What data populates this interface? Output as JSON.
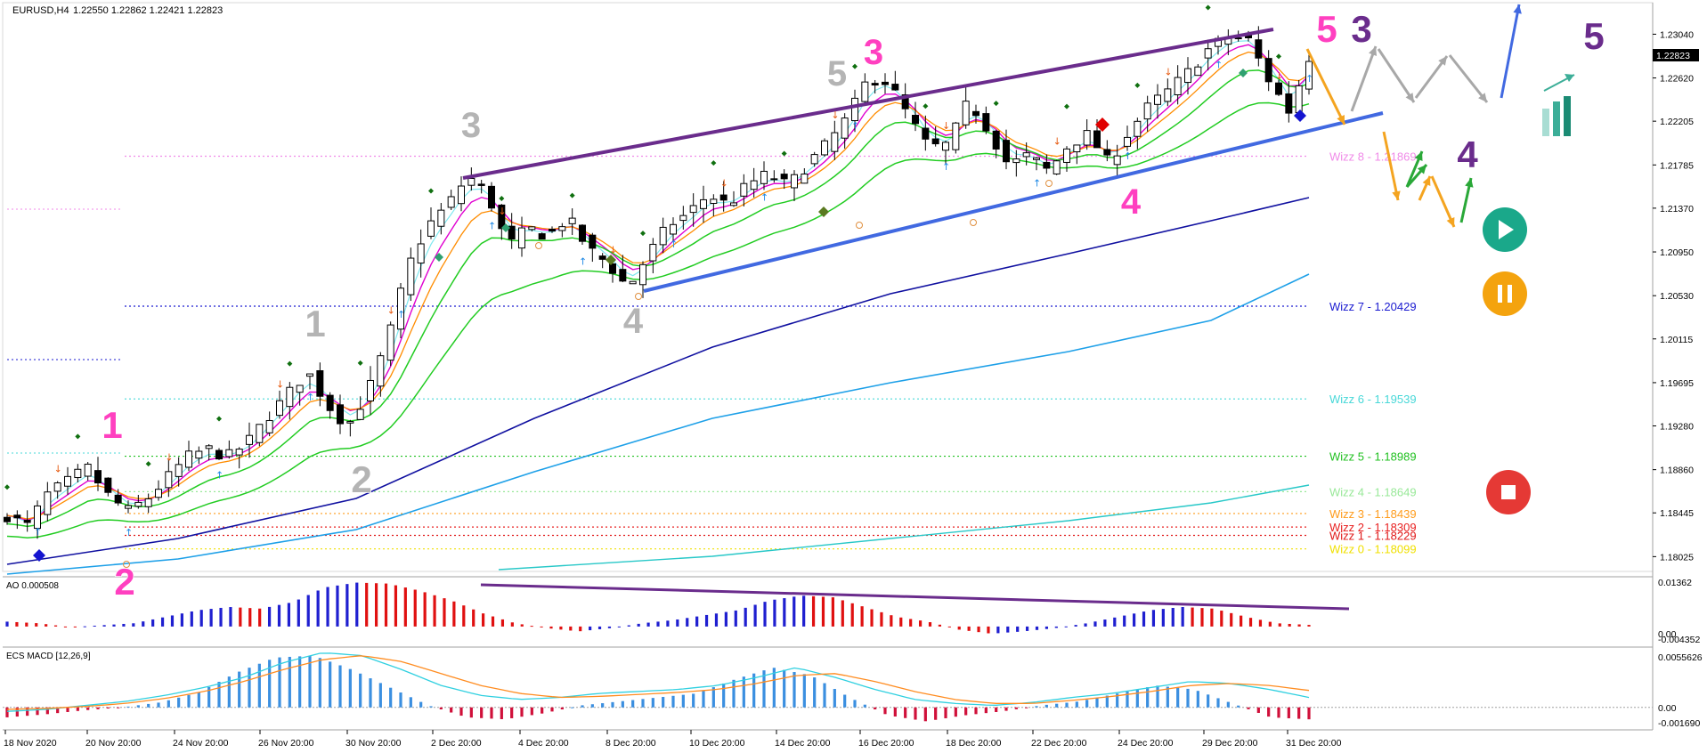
{
  "header": {
    "symbol": "EURUSD,H4",
    "ohlc": "1.22550 1.22862 1.22421 1.22823"
  },
  "colors": {
    "bull": "#ffffff",
    "bear": "#000000",
    "wick": "#000000",
    "ema_fast": "#7ee8ef",
    "ema_magenta": "#e000d0",
    "ema_orange": "#ff8c00",
    "ema_green": "#22cc22",
    "ma_navy": "#1010a0",
    "ma_sky": "#1ea0e8",
    "ma_teal": "#28c8c8",
    "trend_purple": "#6a2c8c",
    "trend_blue": "#4169e1",
    "ao_up": "#1f1fd0",
    "ao_down": "#e01010",
    "macd_hist_up": "#3b8fe0",
    "macd_hist_down": "#d0103a",
    "macd_line": "#30d0e0",
    "signal_line": "#ff8c20"
  },
  "chart_data": [
    {
      "type": "candlestick",
      "name": "price",
      "ylim": [
        1.179,
        1.233
      ],
      "price_label": "1.22823",
      "y_ticks": [
        "1.23040",
        "1.22620",
        "1.22205",
        "1.21785",
        "1.21370",
        "1.20950",
        "1.20530",
        "1.20115",
        "1.19695",
        "1.19280",
        "1.18860",
        "1.18445",
        "1.18025"
      ],
      "x_ticks": [
        "18 Nov 2020",
        "20 Nov 20:00",
        "24 Nov 20:00",
        "26 Nov 20:00",
        "30 Nov 20:00",
        "2 Dec 20:00",
        "4 Dec 20:00",
        "8 Dec 20:00",
        "10 Dec 20:00",
        "14 Dec 20:00",
        "16 Dec 20:00",
        "18 Dec 20:00",
        "22 Dec 20:00",
        "24 Dec 20:00",
        "29 Dec 20:00",
        "31 Dec 20:00"
      ],
      "candle_anchors": [
        1.1842,
        1.1832,
        1.1862,
        1.1874,
        1.1888,
        1.1862,
        1.1846,
        1.1858,
        1.1878,
        1.1898,
        1.1906,
        1.1898,
        1.1912,
        1.1936,
        1.1958,
        1.198,
        1.1948,
        1.1928,
        1.196,
        1.201,
        1.208,
        1.212,
        1.214,
        1.2168,
        1.215,
        1.21,
        1.2118,
        1.211,
        1.2128,
        1.2098,
        1.2084,
        1.206,
        1.2092,
        1.212,
        1.2132,
        1.215,
        1.214,
        1.216,
        1.217,
        1.2158,
        1.218,
        1.22,
        1.2225,
        1.2262,
        1.2258,
        1.2225,
        1.2195,
        1.2198,
        1.224,
        1.2212,
        1.2178,
        1.2188,
        1.2172,
        1.2198,
        1.2208,
        1.218,
        1.221,
        1.2235,
        1.225,
        1.2268,
        1.229,
        1.2302,
        1.2298,
        1.226,
        1.223,
        1.2282
      ],
      "wizz_levels": [
        {
          "label": "Wizz 8 - 1.21869",
          "value": 1.21869,
          "color": "#f08ae8"
        },
        {
          "label": "Wizz 7 - 1.20429",
          "value": 1.20429,
          "color": "#1a1ad0"
        },
        {
          "label": "Wizz 6 - 1.19539",
          "value": 1.19539,
          "color": "#48d8d8"
        },
        {
          "label": "Wizz 5 - 1.18989",
          "value": 1.18989,
          "color": "#20c020"
        },
        {
          "label": "Wizz 4 - 1.18649",
          "value": 1.18649,
          "color": "#98e898"
        },
        {
          "label": "Wizz 3 - 1.18439",
          "value": 1.18439,
          "color": "#ff9c1c"
        },
        {
          "label": "Wizz 2 - 1.18309",
          "value": 1.18309,
          "color": "#e82020"
        },
        {
          "label": "Wizz 1 - 1.18229",
          "value": 1.18229,
          "color": "#e01818"
        },
        {
          "label": "Wizz 0 - 1.18099",
          "value": 1.18099,
          "color": "#f0e000"
        }
      ],
      "trendlines": [
        {
          "name": "upper-resistance",
          "from": [
            1.2168,
            "2 Dec"
          ],
          "to": [
            1.2308,
            "30 Dec"
          ],
          "color": "#6a2c8c"
        },
        {
          "name": "lower-support",
          "from": [
            1.206,
            "8 Dec"
          ],
          "to": [
            1.2225,
            "31 Dec+"
          ],
          "color": "#4169e1"
        }
      ],
      "wave_labels": [
        {
          "text": "1",
          "color": "#ff40c0"
        },
        {
          "text": "2",
          "color": "#ff40c0"
        },
        {
          "text": "1",
          "color": "#b4b4b4"
        },
        {
          "text": "2",
          "color": "#b4b4b4"
        },
        {
          "text": "3",
          "color": "#b4b4b4"
        },
        {
          "text": "4",
          "color": "#b4b4b4"
        },
        {
          "text": "5",
          "color": "#b4b4b4"
        },
        {
          "text": "3",
          "color": "#ff40c0"
        },
        {
          "text": "4",
          "color": "#ff40c0"
        },
        {
          "text": "5",
          "color": "#ff40c0"
        },
        {
          "text": "3",
          "color": "#6a2c8c"
        },
        {
          "text": "4",
          "color": "#6a2c8c"
        },
        {
          "text": "5",
          "color": "#6a2c8c"
        }
      ]
    },
    {
      "type": "bar",
      "name": "AO",
      "label": "AO 0.000508",
      "y_ticks": [
        "0.01362",
        "0.00",
        "-0.004352"
      ],
      "ylim": [
        -0.0055,
        0.0142
      ],
      "anchors": [
        0.0015,
        0.001,
        -0.0002,
        0.0004,
        0.001,
        0.003,
        0.005,
        0.006,
        0.0055,
        0.0075,
        0.012,
        0.0135,
        0.0132,
        0.011,
        0.008,
        0.004,
        0.001,
        -0.0005,
        -0.0015,
        -0.0005,
        0.001,
        0.002,
        0.0035,
        0.005,
        0.008,
        0.0095,
        0.009,
        0.006,
        0.003,
        0.0015,
        -0.001,
        -0.0022,
        -0.0015,
        -0.0005,
        0.001,
        0.003,
        0.005,
        0.006,
        0.0055,
        0.003,
        0.001,
        0.0005
      ]
    },
    {
      "type": "bar",
      "name": "MACD",
      "label": "ECS MACD [12,26,9]",
      "y_ticks": [
        "0.0055626",
        "0.00",
        "-0.001690"
      ],
      "ylim": [
        -0.0019,
        0.0057
      ],
      "hist_anchors": [
        -0.001,
        -0.0007,
        -0.0003,
        0.0,
        0.0005,
        0.0015,
        0.0035,
        0.005,
        0.0052,
        0.0038,
        0.002,
        0.0002,
        -0.001,
        -0.0012,
        -0.0006,
        0.0002,
        0.0006,
        0.001,
        0.0014,
        0.0028,
        0.004,
        0.0032,
        0.001,
        -0.0008,
        -0.0014,
        -0.0008,
        -0.0004,
        0.0002,
        0.0006,
        0.0014,
        0.0022,
        0.0018,
        0.0004,
        -0.001,
        -0.0012
      ],
      "macd_anchors": [
        -0.0004,
        -0.0002,
        0.0002,
        0.0006,
        0.0012,
        0.002,
        0.003,
        0.0045,
        0.0055,
        0.0052,
        0.0038,
        0.0022,
        0.0012,
        0.0008,
        0.001,
        0.0014,
        0.0016,
        0.0018,
        0.0022,
        0.003,
        0.004,
        0.003,
        0.0018,
        0.0008,
        0.0004,
        0.0002,
        0.0005,
        0.001,
        0.0014,
        0.002,
        0.0026,
        0.0024,
        0.0018,
        0.001
      ],
      "signal_anchors": [
        -0.0002,
        -0.0001,
        0.0001,
        0.0004,
        0.0009,
        0.0016,
        0.0026,
        0.0038,
        0.0048,
        0.0052,
        0.0046,
        0.0034,
        0.0022,
        0.0014,
        0.001,
        0.0011,
        0.0013,
        0.0015,
        0.0018,
        0.0024,
        0.0032,
        0.0034,
        0.0026,
        0.0016,
        0.0008,
        0.0004,
        0.0004,
        0.0007,
        0.0011,
        0.0016,
        0.0022,
        0.0024,
        0.0022,
        0.0017
      ]
    }
  ]
}
